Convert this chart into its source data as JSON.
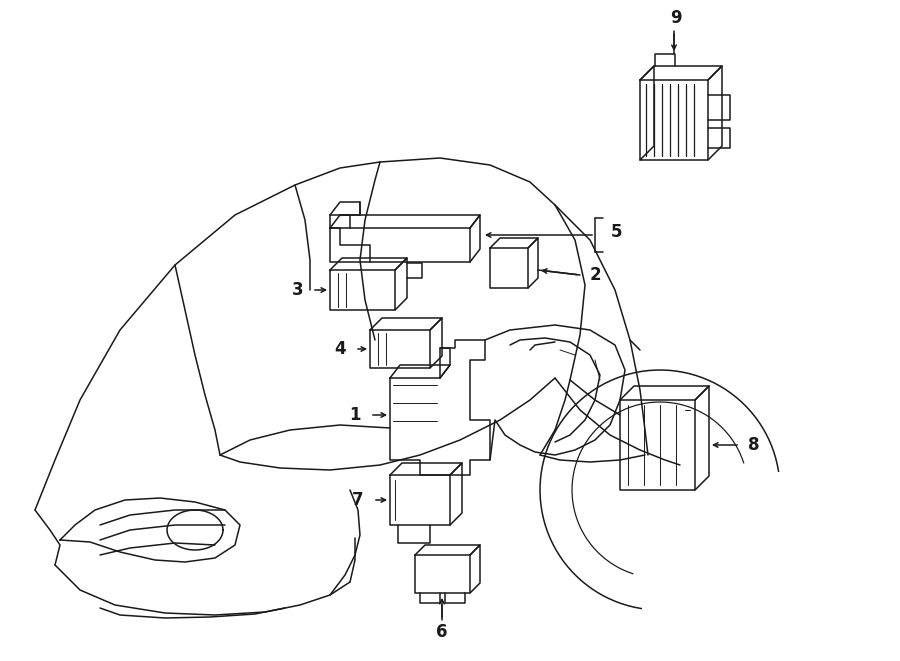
{
  "bg_color": "#ffffff",
  "line_color": "#1a1a1a",
  "fig_width": 9.0,
  "fig_height": 6.61,
  "dpi": 100,
  "label_fontsize": 12,
  "lw": 1.1
}
